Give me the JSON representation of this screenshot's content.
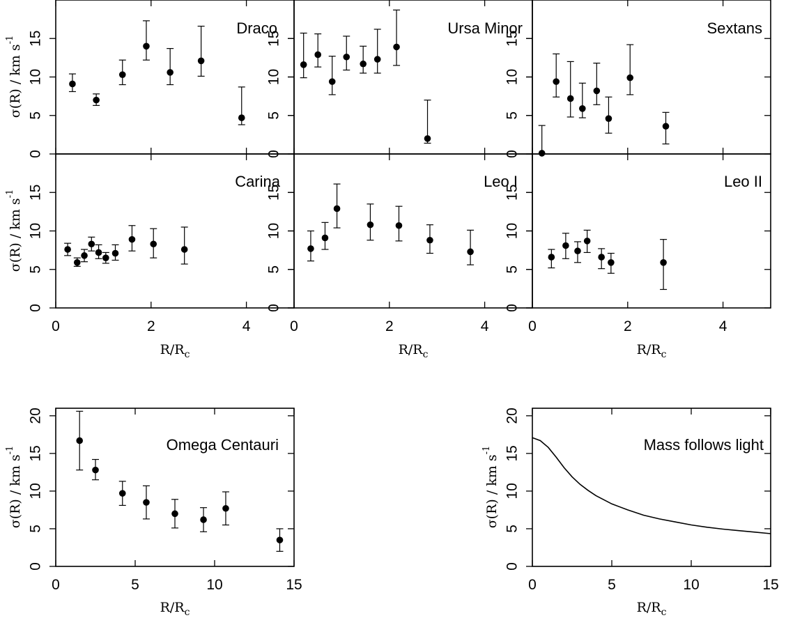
{
  "axis_labels": {
    "x_main": "R/R",
    "x_sub": "c",
    "y_main": "σ(R) / km s",
    "y_sup": "-1"
  },
  "chart_data": [
    {
      "type": "scatter",
      "title": "Draco",
      "xlim": [
        0,
        5
      ],
      "ylim": [
        0,
        20
      ],
      "x_ticks": [
        0,
        2,
        4
      ],
      "y_ticks": [
        0,
        5,
        10,
        15
      ],
      "points": [
        {
          "x": 0.35,
          "y": 9.1,
          "lo": 8.1,
          "hi": 10.4
        },
        {
          "x": 0.85,
          "y": 7.0,
          "lo": 6.3,
          "hi": 7.8
        },
        {
          "x": 1.4,
          "y": 10.3,
          "lo": 9.0,
          "hi": 12.2
        },
        {
          "x": 1.9,
          "y": 14.0,
          "lo": 12.2,
          "hi": 17.3
        },
        {
          "x": 2.4,
          "y": 10.6,
          "lo": 9.0,
          "hi": 13.7
        },
        {
          "x": 3.05,
          "y": 12.1,
          "lo": 10.1,
          "hi": 16.6
        },
        {
          "x": 3.9,
          "y": 4.7,
          "lo": 3.8,
          "hi": 8.7
        }
      ]
    },
    {
      "type": "scatter",
      "title": "Ursa Minor",
      "xlim": [
        0,
        5
      ],
      "ylim": [
        0,
        20
      ],
      "x_ticks": [
        0,
        2,
        4
      ],
      "y_ticks": [
        0,
        5,
        10,
        15
      ],
      "points": [
        {
          "x": 0.2,
          "y": 11.6,
          "lo": 9.9,
          "hi": 15.7
        },
        {
          "x": 0.5,
          "y": 12.9,
          "lo": 11.3,
          "hi": 15.6
        },
        {
          "x": 0.8,
          "y": 9.4,
          "lo": 7.7,
          "hi": 12.7
        },
        {
          "x": 1.1,
          "y": 12.6,
          "lo": 10.9,
          "hi": 15.3
        },
        {
          "x": 1.45,
          "y": 11.7,
          "lo": 10.5,
          "hi": 14.0
        },
        {
          "x": 1.75,
          "y": 12.3,
          "lo": 10.5,
          "hi": 16.2
        },
        {
          "x": 2.15,
          "y": 13.9,
          "lo": 11.5,
          "hi": 18.7
        },
        {
          "x": 2.8,
          "y": 2.0,
          "lo": 1.4,
          "hi": 7.0
        }
      ]
    },
    {
      "type": "scatter",
      "title": "Sextans",
      "xlim": [
        0,
        5
      ],
      "ylim": [
        0,
        20
      ],
      "x_ticks": [
        0,
        2,
        4
      ],
      "y_ticks": [
        0,
        5,
        10,
        15
      ],
      "points": [
        {
          "x": 0.2,
          "y": 0.1,
          "lo": 0.0,
          "hi": 3.7
        },
        {
          "x": 0.5,
          "y": 9.4,
          "lo": 7.4,
          "hi": 13.0
        },
        {
          "x": 0.8,
          "y": 7.2,
          "lo": 4.8,
          "hi": 12.0
        },
        {
          "x": 1.05,
          "y": 5.9,
          "lo": 4.7,
          "hi": 9.2
        },
        {
          "x": 1.35,
          "y": 8.2,
          "lo": 6.4,
          "hi": 11.8
        },
        {
          "x": 1.6,
          "y": 4.6,
          "lo": 2.7,
          "hi": 7.4
        },
        {
          "x": 2.05,
          "y": 9.9,
          "lo": 7.7,
          "hi": 14.2
        },
        {
          "x": 2.8,
          "y": 3.6,
          "lo": 1.3,
          "hi": 5.4
        }
      ]
    },
    {
      "type": "scatter",
      "title": "Carina",
      "xlim": [
        0,
        5
      ],
      "ylim": [
        0,
        20
      ],
      "x_ticks": [
        0,
        2,
        4
      ],
      "y_ticks": [
        0,
        5,
        10,
        15
      ],
      "points": [
        {
          "x": 0.25,
          "y": 7.6,
          "lo": 6.8,
          "hi": 8.4
        },
        {
          "x": 0.45,
          "y": 5.9,
          "lo": 5.4,
          "hi": 6.5
        },
        {
          "x": 0.6,
          "y": 6.8,
          "lo": 6.0,
          "hi": 7.6
        },
        {
          "x": 0.75,
          "y": 8.3,
          "lo": 7.4,
          "hi": 9.2
        },
        {
          "x": 0.9,
          "y": 7.2,
          "lo": 6.4,
          "hi": 8.2
        },
        {
          "x": 1.05,
          "y": 6.5,
          "lo": 5.8,
          "hi": 7.2
        },
        {
          "x": 1.25,
          "y": 7.1,
          "lo": 6.2,
          "hi": 8.2
        },
        {
          "x": 1.6,
          "y": 8.9,
          "lo": 7.4,
          "hi": 10.7
        },
        {
          "x": 2.05,
          "y": 8.3,
          "lo": 6.5,
          "hi": 10.3
        },
        {
          "x": 2.7,
          "y": 7.6,
          "lo": 5.7,
          "hi": 10.5
        }
      ]
    },
    {
      "type": "scatter",
      "title": "Leo I",
      "xlim": [
        0,
        5
      ],
      "ylim": [
        0,
        20
      ],
      "x_ticks": [
        0,
        2,
        4
      ],
      "y_ticks": [
        0,
        5,
        10,
        15
      ],
      "points": [
        {
          "x": 0.35,
          "y": 7.7,
          "lo": 6.1,
          "hi": 10.0
        },
        {
          "x": 0.65,
          "y": 9.1,
          "lo": 7.6,
          "hi": 11.1
        },
        {
          "x": 0.9,
          "y": 12.9,
          "lo": 10.4,
          "hi": 16.1
        },
        {
          "x": 1.6,
          "y": 10.8,
          "lo": 8.8,
          "hi": 13.5
        },
        {
          "x": 2.2,
          "y": 10.7,
          "lo": 8.7,
          "hi": 13.2
        },
        {
          "x": 2.85,
          "y": 8.8,
          "lo": 7.1,
          "hi": 10.8
        },
        {
          "x": 3.7,
          "y": 7.3,
          "lo": 5.6,
          "hi": 10.1
        }
      ]
    },
    {
      "type": "scatter",
      "title": "Leo II",
      "xlim": [
        0,
        5
      ],
      "ylim": [
        0,
        20
      ],
      "x_ticks": [
        0,
        2,
        4
      ],
      "y_ticks": [
        0,
        5,
        10,
        15
      ],
      "points": [
        {
          "x": 0.4,
          "y": 6.6,
          "lo": 5.2,
          "hi": 7.6
        },
        {
          "x": 0.7,
          "y": 8.1,
          "lo": 6.4,
          "hi": 9.7
        },
        {
          "x": 0.95,
          "y": 7.4,
          "lo": 5.9,
          "hi": 8.6
        },
        {
          "x": 1.15,
          "y": 8.7,
          "lo": 7.2,
          "hi": 10.1
        },
        {
          "x": 1.45,
          "y": 6.6,
          "lo": 5.1,
          "hi": 7.7
        },
        {
          "x": 1.65,
          "y": 5.9,
          "lo": 4.5,
          "hi": 7.1
        },
        {
          "x": 2.75,
          "y": 5.9,
          "lo": 2.4,
          "hi": 8.9
        }
      ]
    },
    {
      "type": "scatter",
      "title": "Omega Centauri",
      "xlim": [
        0,
        15
      ],
      "ylim": [
        0,
        21
      ],
      "x_ticks": [
        0,
        5,
        10,
        15
      ],
      "y_ticks": [
        0,
        5,
        10,
        15,
        20
      ],
      "points": [
        {
          "x": 1.5,
          "y": 16.7,
          "lo": 12.8,
          "hi": 20.6
        },
        {
          "x": 2.5,
          "y": 12.8,
          "lo": 11.5,
          "hi": 14.2
        },
        {
          "x": 4.2,
          "y": 9.7,
          "lo": 8.1,
          "hi": 11.3
        },
        {
          "x": 5.7,
          "y": 8.5,
          "lo": 6.3,
          "hi": 10.7
        },
        {
          "x": 7.5,
          "y": 7.0,
          "lo": 5.1,
          "hi": 8.9
        },
        {
          "x": 9.3,
          "y": 6.2,
          "lo": 4.6,
          "hi": 7.8
        },
        {
          "x": 10.7,
          "y": 7.7,
          "lo": 5.5,
          "hi": 9.9
        },
        {
          "x": 14.1,
          "y": 3.5,
          "lo": 2.0,
          "hi": 5.0
        }
      ]
    },
    {
      "type": "line",
      "title": "Mass follows light",
      "xlim": [
        0,
        15
      ],
      "ylim": [
        0,
        21
      ],
      "x_ticks": [
        0,
        5,
        10,
        15
      ],
      "y_ticks": [
        0,
        5,
        10,
        15,
        20
      ],
      "x": [
        0,
        0.5,
        1,
        1.5,
        2,
        2.5,
        3,
        3.5,
        4,
        5,
        6,
        7,
        8,
        9,
        10,
        11,
        12,
        13,
        14,
        15
      ],
      "y": [
        17.1,
        16.7,
        15.8,
        14.5,
        13.1,
        11.9,
        10.9,
        10.1,
        9.4,
        8.3,
        7.5,
        6.8,
        6.3,
        5.9,
        5.5,
        5.2,
        4.95,
        4.75,
        4.55,
        4.35
      ]
    }
  ]
}
